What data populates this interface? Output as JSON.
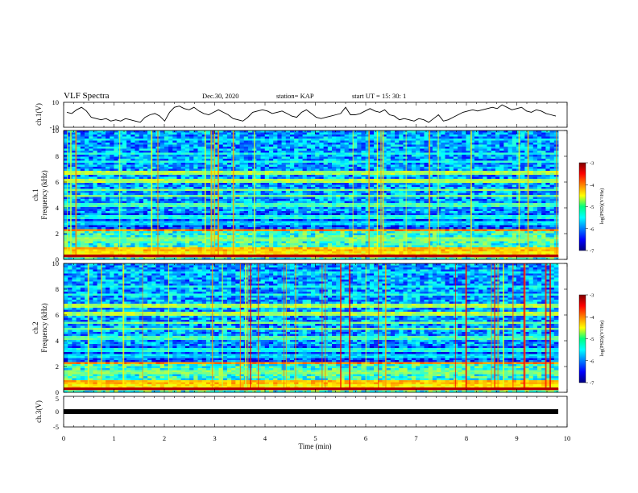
{
  "header": {
    "title": "VLF Spectra",
    "date": "Dec.30, 2020",
    "station": "station= KAP",
    "start": "start  UT =   15: 30: 1"
  },
  "chart_data": [
    {
      "id": "ch1-waveform",
      "type": "line",
      "ylabel": "ch.1(V)",
      "ylim": [
        -10,
        10
      ],
      "yticks": [
        -10,
        10
      ],
      "xlim": [
        0,
        10
      ],
      "x_unit": "min",
      "y": [
        2,
        1,
        4,
        6,
        3,
        -2,
        -3,
        -4,
        -3,
        -5,
        -4,
        -5,
        -3,
        -4,
        -5,
        -6,
        -2,
        0,
        1,
        -1,
        -5,
        2,
        6,
        7,
        5,
        4,
        6,
        3,
        1,
        0,
        2,
        4,
        2,
        0,
        -3,
        -4,
        -5,
        -2,
        2,
        3,
        4,
        3,
        1,
        2,
        3,
        1,
        -1,
        -2,
        2,
        4,
        1,
        -2,
        -3,
        -2,
        -1,
        0,
        1,
        6,
        0,
        0,
        1,
        3,
        5,
        3,
        2,
        4,
        0,
        -1,
        -4,
        -3,
        -4,
        -5,
        -3,
        -4,
        -6,
        -3,
        0,
        -5,
        -4,
        -2,
        0,
        2,
        3,
        4,
        3,
        4,
        5,
        6,
        5,
        8,
        6,
        4,
        5,
        6,
        3,
        2,
        4,
        3,
        1,
        0,
        -1
      ]
    },
    {
      "id": "ch1-spectrogram",
      "type": "heatmap",
      "ylabel_top": "ch.1",
      "ylabel": "Frequency (kHz)",
      "ylim": [
        0,
        10
      ],
      "yticks": [
        0,
        2,
        4,
        6,
        8,
        10
      ],
      "xlim": [
        0,
        10
      ],
      "colorscale": "jet",
      "colorbar": {
        "label": "log(PSD)(V²/Hz)",
        "range": [
          -7,
          -3
        ],
        "ticks": [
          -7,
          -6,
          -5,
          -4,
          -3
        ]
      }
    },
    {
      "id": "ch2-spectrogram",
      "type": "heatmap",
      "ylabel_top": "ch.2",
      "ylabel": "Frequency (kHz)",
      "ylim": [
        0,
        10
      ],
      "yticks": [
        0,
        2,
        4,
        6,
        8,
        10
      ],
      "xlim": [
        0,
        10
      ],
      "colorscale": "jet",
      "colorbar": {
        "label": "log(PSD)(V²/Hz)",
        "range": [
          -7,
          -3
        ],
        "ticks": [
          -7,
          -6,
          -5,
          -4,
          -3
        ]
      }
    },
    {
      "id": "ch3-waveform",
      "type": "line",
      "ylabel": "ch.3(V)",
      "ylim": [
        -5,
        5
      ],
      "yticks": [
        -5,
        0,
        5
      ],
      "xlim": [
        0,
        10
      ],
      "xticks": [
        0,
        1,
        2,
        3,
        4,
        5,
        6,
        7,
        8,
        9,
        10
      ],
      "xlabel": "Time  (min)",
      "y": [
        0,
        0
      ]
    }
  ],
  "colors": {
    "axis": "#000000",
    "trace": "#000000",
    "jet_low": "#00007f",
    "jet_high": "#7f0000"
  }
}
